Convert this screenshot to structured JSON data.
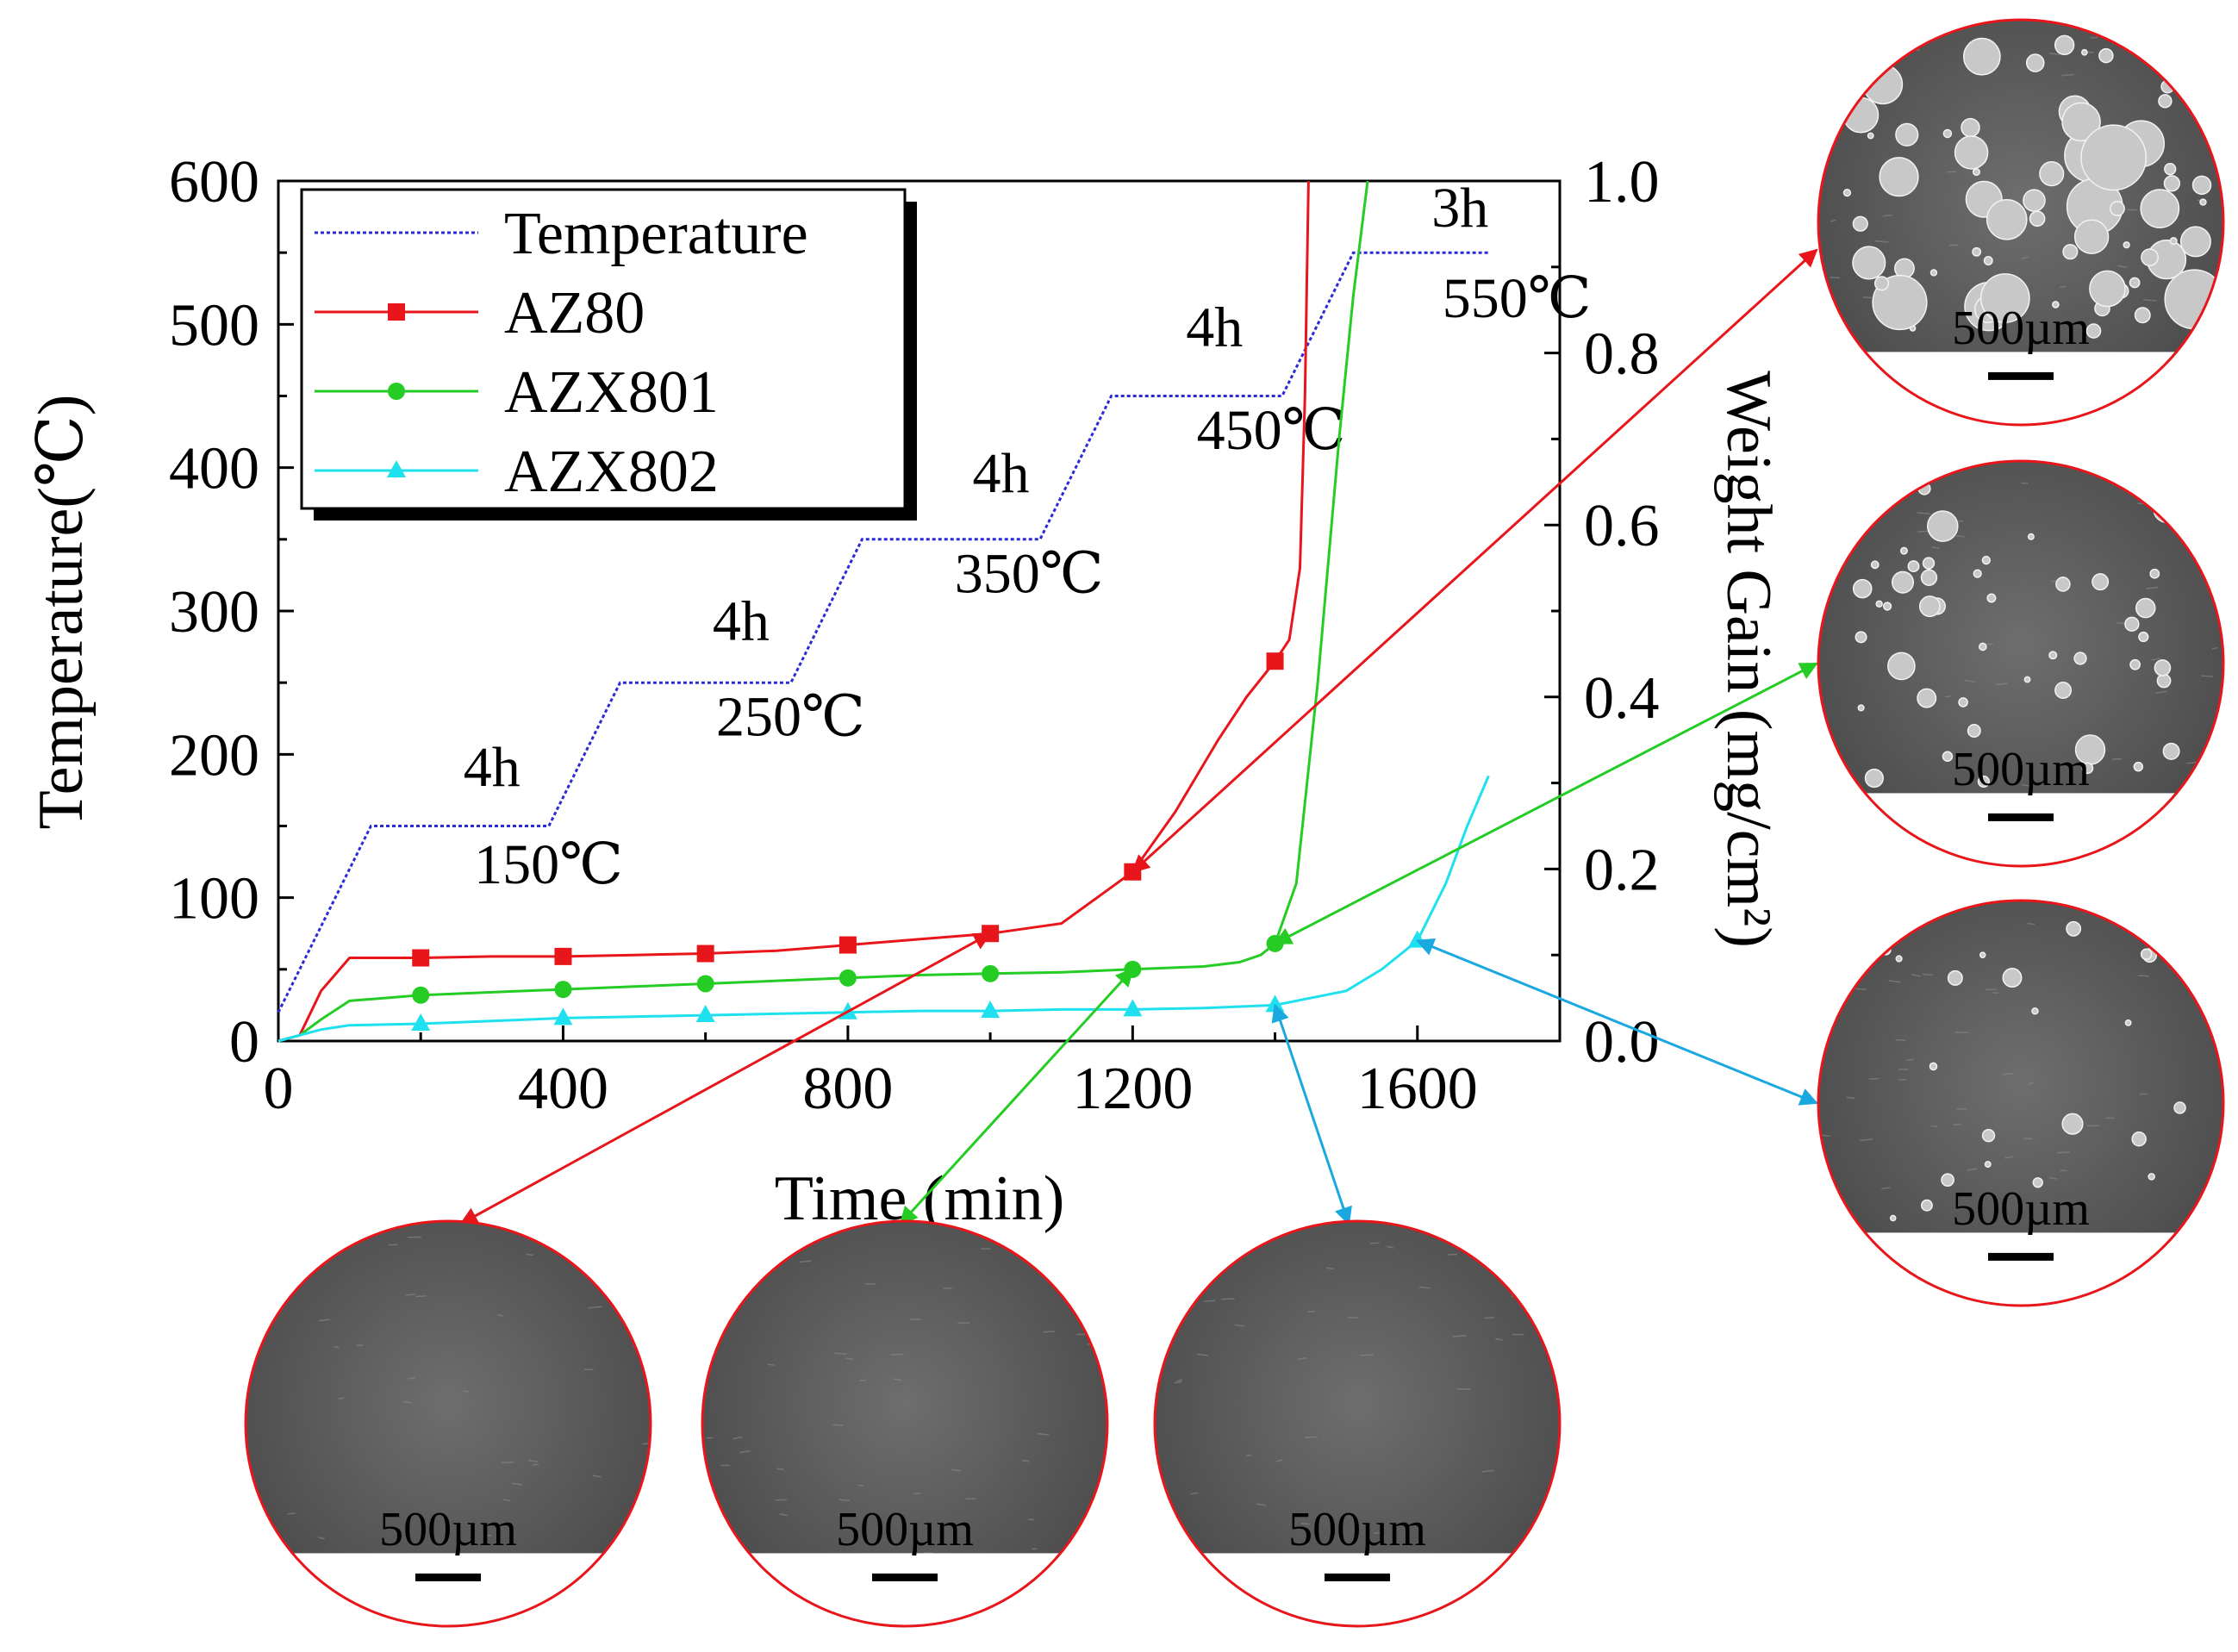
{
  "chart_data": {
    "type": "line",
    "xlabel": "Time (min)",
    "ylabel_left": "Temperature(℃)",
    "ylabel_right": "Weight Gain (mg/cm²)",
    "xlim": [
      0,
      1800
    ],
    "ylim_left": [
      0,
      600
    ],
    "ylim_right": [
      0,
      1.0
    ],
    "x_ticks": [
      "0",
      "400",
      "800",
      "1200",
      "1600"
    ],
    "y_left_ticks": [
      "0",
      "100",
      "200",
      "300",
      "400",
      "500",
      "600"
    ],
    "y_right_ticks": [
      "0.0",
      "0.2",
      "0.4",
      "0.6",
      "0.8",
      "1.0"
    ],
    "legend_position": "top-left",
    "grid": false,
    "series": [
      {
        "name": "Temperature",
        "axis": "left",
        "color": "#2b2bd6",
        "marker": "none",
        "dashed": true,
        "x": [
          0,
          130,
          380,
          480,
          720,
          820,
          1070,
          1170,
          1410,
          1510,
          1700
        ],
        "y": [
          20,
          150,
          150,
          250,
          250,
          350,
          350,
          450,
          450,
          550,
          550
        ]
      },
      {
        "name": "AZ80",
        "axis": "left",
        "color": "#e8161b",
        "marker": "square",
        "x": [
          0,
          30,
          60,
          100,
          150,
          200,
          300,
          400,
          500,
          600,
          700,
          800,
          900,
          1000,
          1100,
          1150,
          1200,
          1260,
          1320,
          1360,
          1400,
          1420,
          1435,
          1442,
          1447
        ],
        "y": [
          0,
          4,
          35,
          58,
          58,
          58,
          59,
          59,
          60,
          61,
          63,
          67,
          71,
          75,
          82,
          100,
          118,
          160,
          210,
          240,
          265,
          280,
          330,
          450,
          600
        ],
        "markers_x": [
          200,
          400,
          600,
          800,
          1000,
          1200,
          1400
        ]
      },
      {
        "name": "AZX801",
        "axis": "left",
        "color": "#24cc24",
        "marker": "circle",
        "x": [
          0,
          30,
          60,
          100,
          150,
          200,
          300,
          400,
          500,
          600,
          700,
          800,
          900,
          1000,
          1100,
          1200,
          1300,
          1350,
          1380,
          1400,
          1430,
          1460,
          1490,
          1510,
          1530
        ],
        "y": [
          0,
          4,
          15,
          28,
          30,
          32,
          34,
          36,
          38,
          40,
          42,
          44,
          46,
          47,
          48,
          50,
          52,
          55,
          60,
          68,
          110,
          250,
          420,
          520,
          600
        ],
        "markers_x": [
          200,
          400,
          600,
          800,
          1000,
          1200,
          1400
        ]
      },
      {
        "name": "AZX802",
        "axis": "left",
        "color": "#1ee0ee",
        "marker": "triangle",
        "x": [
          0,
          30,
          60,
          100,
          200,
          300,
          400,
          500,
          600,
          700,
          800,
          900,
          1000,
          1100,
          1200,
          1300,
          1400,
          1500,
          1550,
          1600,
          1640,
          1670,
          1700
        ],
        "y": [
          0,
          4,
          8,
          11,
          12,
          14,
          16,
          17,
          18,
          19,
          20,
          21,
          21,
          22,
          22,
          23,
          25,
          35,
          50,
          70,
          110,
          150,
          185
        ],
        "markers_x": [
          200,
          400,
          600,
          800,
          1000,
          1200,
          1400,
          1600
        ]
      }
    ],
    "annotations": [
      {
        "text": "4h",
        "x": 260,
        "y": 178
      },
      {
        "text": "150℃",
        "x": 275,
        "y": 110
      },
      {
        "text": "4h",
        "x": 610,
        "y": 280
      },
      {
        "text": "250℃",
        "x": 615,
        "y": 213
      },
      {
        "text": "4h",
        "x": 975,
        "y": 383
      },
      {
        "text": "350℃",
        "x": 950,
        "y": 313
      },
      {
        "text": "4h",
        "x": 1275,
        "y": 485
      },
      {
        "text": "450℃",
        "x": 1290,
        "y": 413
      },
      {
        "text": "3h",
        "x": 1620,
        "y": 568
      },
      {
        "text": "550℃",
        "x": 1635,
        "y": 505
      }
    ]
  },
  "micrographs": [
    {
      "id": "az80-before",
      "scale_label": "500µm",
      "particles": "none",
      "arrow_color": "#e8161b",
      "points_to": {
        "series": "AZ80",
        "x": 1000
      }
    },
    {
      "id": "azx801-before",
      "scale_label": "500µm",
      "particles": "none",
      "arrow_color": "#24cc24",
      "points_to": {
        "series": "AZX801",
        "x": 1200
      }
    },
    {
      "id": "azx802-before",
      "scale_label": "500µm",
      "particles": "none",
      "arrow_color": "#1aa8e0",
      "points_to": {
        "series": "AZX802",
        "x": 1400
      }
    },
    {
      "id": "az80-after",
      "scale_label": "500µm",
      "particles": "heavy",
      "arrow_color": "#e8161b",
      "points_to": {
        "series": "AZ80",
        "x": 1200
      }
    },
    {
      "id": "azx801-after",
      "scale_label": "500µm",
      "particles": "medium",
      "arrow_color": "#24cc24",
      "points_to": {
        "series": "AZX801",
        "x": 1400
      }
    },
    {
      "id": "azx802-after",
      "scale_label": "500µm",
      "particles": "light",
      "arrow_color": "#1aa8e0",
      "points_to": {
        "series": "AZX802",
        "x": 1600
      }
    }
  ]
}
